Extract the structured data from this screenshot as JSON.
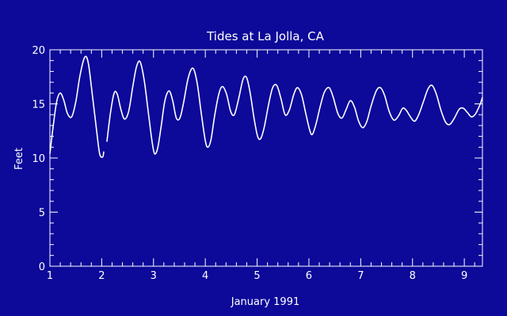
{
  "colors": {
    "background": "#0d0999",
    "foreground": "#ffffff"
  },
  "chart_data": {
    "type": "line",
    "title": "Tides at La Jolla, CA",
    "xlabel": "January 1991",
    "ylabel": "Feet",
    "xlim": [
      1,
      9.35
    ],
    "ylim": [
      0,
      20
    ],
    "xticks": [
      "1",
      "2",
      "3",
      "4",
      "5",
      "6",
      "7",
      "8",
      "9"
    ],
    "yticks": [
      "0",
      "5",
      "10",
      "15",
      "20"
    ],
    "grid": false,
    "legend": "none",
    "series": [
      {
        "segments": [
          [
            [
              1.0,
              10.4
            ],
            [
              1.06,
              12.8
            ],
            [
              1.13,
              15.2
            ],
            [
              1.2,
              16.0
            ],
            [
              1.27,
              15.3
            ],
            [
              1.34,
              14.1
            ],
            [
              1.42,
              13.8
            ],
            [
              1.5,
              15.2
            ],
            [
              1.58,
              17.6
            ],
            [
              1.67,
              19.3
            ],
            [
              1.74,
              18.8
            ],
            [
              1.82,
              15.8
            ],
            [
              1.9,
              12.6
            ],
            [
              1.96,
              10.4
            ],
            [
              2.02,
              10.1
            ],
            [
              2.04,
              10.6
            ]
          ],
          [
            [
              2.1,
              11.5
            ],
            [
              2.17,
              14.2
            ],
            [
              2.24,
              16.0
            ],
            [
              2.3,
              15.9
            ],
            [
              2.37,
              14.5
            ],
            [
              2.44,
              13.6
            ],
            [
              2.52,
              14.3
            ],
            [
              2.6,
              16.6
            ],
            [
              2.67,
              18.4
            ],
            [
              2.74,
              18.9
            ],
            [
              2.82,
              17.2
            ],
            [
              2.9,
              14.2
            ],
            [
              2.97,
              11.6
            ],
            [
              3.02,
              10.4
            ],
            [
              3.08,
              10.9
            ],
            [
              3.15,
              13.0
            ],
            [
              3.22,
              15.3
            ],
            [
              3.3,
              16.2
            ],
            [
              3.37,
              15.3
            ],
            [
              3.44,
              13.7
            ],
            [
              3.51,
              13.7
            ],
            [
              3.58,
              15.1
            ],
            [
              3.67,
              17.4
            ],
            [
              3.76,
              18.3
            ],
            [
              3.84,
              17.0
            ],
            [
              3.92,
              14.2
            ],
            [
              4.0,
              11.6
            ],
            [
              4.05,
              11.0
            ],
            [
              4.11,
              11.7
            ],
            [
              4.18,
              13.9
            ],
            [
              4.26,
              15.9
            ],
            [
              4.33,
              16.6
            ],
            [
              4.41,
              15.9
            ],
            [
              4.49,
              14.3
            ],
            [
              4.56,
              14.0
            ],
            [
              4.64,
              15.4
            ],
            [
              4.73,
              17.3
            ],
            [
              4.8,
              17.4
            ],
            [
              4.87,
              15.9
            ],
            [
              4.94,
              13.7
            ],
            [
              5.01,
              12.0
            ],
            [
              5.07,
              11.8
            ],
            [
              5.14,
              12.9
            ],
            [
              5.22,
              14.9
            ],
            [
              5.3,
              16.5
            ],
            [
              5.38,
              16.7
            ],
            [
              5.46,
              15.5
            ],
            [
              5.54,
              14.0
            ],
            [
              5.62,
              14.4
            ],
            [
              5.71,
              15.9
            ],
            [
              5.78,
              16.5
            ],
            [
              5.86,
              15.8
            ],
            [
              5.94,
              14.1
            ],
            [
              6.02,
              12.5
            ],
            [
              6.07,
              12.2
            ],
            [
              6.14,
              13.2
            ],
            [
              6.22,
              14.8
            ],
            [
              6.3,
              16.1
            ],
            [
              6.39,
              16.5
            ],
            [
              6.47,
              15.6
            ],
            [
              6.56,
              14.1
            ],
            [
              6.64,
              13.7
            ],
            [
              6.72,
              14.5
            ],
            [
              6.8,
              15.3
            ],
            [
              6.88,
              14.7
            ],
            [
              6.96,
              13.4
            ],
            [
              7.04,
              12.8
            ],
            [
              7.12,
              13.4
            ],
            [
              7.2,
              14.8
            ],
            [
              7.3,
              16.2
            ],
            [
              7.38,
              16.5
            ],
            [
              7.46,
              15.8
            ],
            [
              7.55,
              14.3
            ],
            [
              7.64,
              13.5
            ],
            [
              7.73,
              13.9
            ],
            [
              7.81,
              14.6
            ],
            [
              7.88,
              14.4
            ],
            [
              7.96,
              13.8
            ],
            [
              8.04,
              13.4
            ],
            [
              8.12,
              14.0
            ],
            [
              8.21,
              15.2
            ],
            [
              8.3,
              16.4
            ],
            [
              8.38,
              16.7
            ],
            [
              8.46,
              15.9
            ],
            [
              8.55,
              14.4
            ],
            [
              8.64,
              13.3
            ],
            [
              8.72,
              13.1
            ],
            [
              8.81,
              13.7
            ],
            [
              8.9,
              14.5
            ],
            [
              8.98,
              14.6
            ],
            [
              9.06,
              14.2
            ],
            [
              9.14,
              13.8
            ],
            [
              9.22,
              14.1
            ],
            [
              9.3,
              14.9
            ],
            [
              9.35,
              15.6
            ]
          ]
        ]
      }
    ]
  }
}
